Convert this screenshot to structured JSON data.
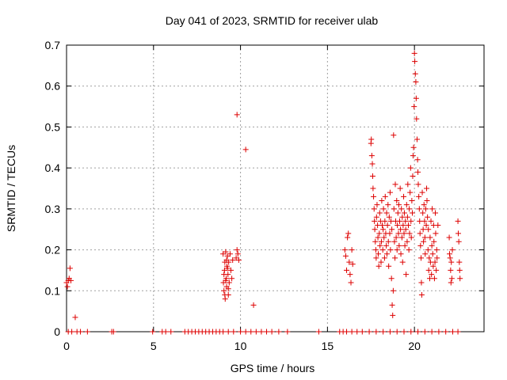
{
  "chart_data": {
    "type": "scatter",
    "title": "Day 041 of 2023, SRMTID for receiver ulab",
    "xlabel": "GPS time / hours",
    "ylabel": "SRMTID / TECUs",
    "xlim": [
      0,
      24
    ],
    "ylim": [
      0,
      0.7
    ],
    "xticks": [
      0,
      5,
      10,
      15,
      20
    ],
    "yticks": [
      0,
      0.1,
      0.2,
      0.3,
      0.4,
      0.5,
      0.6,
      0.7
    ],
    "xtick_labels": [
      "0",
      "5",
      "10",
      "15",
      "20"
    ],
    "ytick_labels": [
      "0",
      "0.1",
      "0.2",
      "0.3",
      "0.4",
      "0.5",
      "0.6",
      "0.7"
    ],
    "grid": true,
    "marker": "+",
    "color": "#dd0000",
    "series": [
      {
        "name": "SRMTID",
        "points": [
          [
            0.0,
            0.12
          ],
          [
            0.05,
            0.11
          ],
          [
            0.1,
            0.125
          ],
          [
            0.15,
            0.13
          ],
          [
            0.2,
            0.155
          ],
          [
            0.25,
            0.125
          ],
          [
            0.5,
            0.035
          ],
          [
            9.0,
            0.19
          ],
          [
            9.02,
            0.12
          ],
          [
            9.05,
            0.1
          ],
          [
            9.08,
            0.15
          ],
          [
            9.1,
            0.17
          ],
          [
            9.12,
            0.08
          ],
          [
            9.15,
            0.195
          ],
          [
            9.18,
            0.13
          ],
          [
            9.2,
            0.11
          ],
          [
            9.22,
            0.16
          ],
          [
            9.25,
            0.185
          ],
          [
            9.28,
            0.14
          ],
          [
            9.3,
            0.09
          ],
          [
            9.32,
            0.17
          ],
          [
            9.35,
            0.12
          ],
          [
            9.4,
            0.19
          ],
          [
            9.45,
            0.15
          ],
          [
            9.5,
            0.13
          ],
          [
            9.55,
            0.175
          ],
          [
            9.05,
            0.14
          ],
          [
            9.1,
            0.09
          ],
          [
            9.2,
            0.175
          ],
          [
            9.3,
            0.105
          ],
          [
            9.15,
            0.125
          ],
          [
            9.25,
            0.155
          ],
          [
            9.75,
            0.18
          ],
          [
            9.8,
            0.2
          ],
          [
            9.85,
            0.19
          ],
          [
            9.9,
            0.175
          ],
          [
            9.8,
            0.53
          ],
          [
            10.3,
            0.445
          ],
          [
            10.75,
            0.065
          ],
          [
            16.0,
            0.2
          ],
          [
            16.05,
            0.185
          ],
          [
            16.1,
            0.15
          ],
          [
            16.15,
            0.23
          ],
          [
            16.2,
            0.24
          ],
          [
            16.25,
            0.17
          ],
          [
            16.3,
            0.14
          ],
          [
            16.35,
            0.12
          ],
          [
            16.4,
            0.2
          ],
          [
            16.45,
            0.165
          ],
          [
            17.5,
            0.46
          ],
          [
            17.52,
            0.47
          ],
          [
            17.55,
            0.43
          ],
          [
            17.58,
            0.41
          ],
          [
            17.6,
            0.38
          ],
          [
            17.62,
            0.35
          ],
          [
            17.65,
            0.33
          ],
          [
            17.68,
            0.3
          ],
          [
            17.7,
            0.27
          ],
          [
            17.72,
            0.25
          ],
          [
            17.75,
            0.22
          ],
          [
            17.78,
            0.2
          ],
          [
            17.8,
            0.18
          ],
          [
            17.82,
            0.28
          ],
          [
            17.85,
            0.31
          ],
          [
            17.88,
            0.26
          ],
          [
            17.9,
            0.23
          ],
          [
            17.92,
            0.19
          ],
          [
            17.95,
            0.16
          ],
          [
            17.98,
            0.24
          ],
          [
            18.0,
            0.29
          ],
          [
            18.02,
            0.21
          ],
          [
            18.05,
            0.27
          ],
          [
            18.08,
            0.17
          ],
          [
            18.1,
            0.22
          ],
          [
            18.12,
            0.32
          ],
          [
            18.15,
            0.26
          ],
          [
            18.18,
            0.2
          ],
          [
            18.2,
            0.25
          ],
          [
            18.22,
            0.3
          ],
          [
            18.25,
            0.23
          ],
          [
            18.28,
            0.18
          ],
          [
            18.3,
            0.27
          ],
          [
            18.32,
            0.33
          ],
          [
            18.35,
            0.24
          ],
          [
            18.38,
            0.21
          ],
          [
            18.4,
            0.29
          ],
          [
            18.42,
            0.19
          ],
          [
            18.45,
            0.26
          ],
          [
            18.48,
            0.31
          ],
          [
            18.5,
            0.22
          ],
          [
            18.52,
            0.16
          ],
          [
            18.55,
            0.28
          ],
          [
            18.58,
            0.24
          ],
          [
            18.6,
            0.34
          ],
          [
            18.62,
            0.2
          ],
          [
            18.65,
            0.27
          ],
          [
            18.68,
            0.13
          ],
          [
            18.7,
            0.25
          ],
          [
            18.72,
            0.065
          ],
          [
            18.75,
            0.04
          ],
          [
            18.78,
            0.1
          ],
          [
            18.8,
            0.48
          ],
          [
            18.82,
            0.3
          ],
          [
            18.85,
            0.22
          ],
          [
            18.88,
            0.18
          ],
          [
            18.9,
            0.36
          ],
          [
            18.92,
            0.27
          ],
          [
            18.95,
            0.23
          ],
          [
            18.98,
            0.32
          ],
          [
            19.0,
            0.2
          ],
          [
            19.02,
            0.26
          ],
          [
            19.05,
            0.29
          ],
          [
            19.08,
            0.24
          ],
          [
            19.1,
            0.31
          ],
          [
            19.12,
            0.21
          ],
          [
            19.15,
            0.27
          ],
          [
            19.18,
            0.35
          ],
          [
            19.2,
            0.25
          ],
          [
            19.22,
            0.19
          ],
          [
            19.25,
            0.3
          ],
          [
            19.28,
            0.23
          ],
          [
            19.3,
            0.28
          ],
          [
            19.32,
            0.17
          ],
          [
            19.35,
            0.26
          ],
          [
            19.38,
            0.33
          ],
          [
            19.4,
            0.24
          ],
          [
            19.42,
            0.29
          ],
          [
            19.45,
            0.21
          ],
          [
            19.48,
            0.27
          ],
          [
            19.5,
            0.25
          ],
          [
            19.52,
            0.14
          ],
          [
            19.55,
            0.31
          ],
          [
            19.58,
            0.22
          ],
          [
            19.6,
            0.28
          ],
          [
            19.62,
            0.36
          ],
          [
            19.65,
            0.26
          ],
          [
            19.68,
            0.2
          ],
          [
            19.7,
            0.3
          ],
          [
            19.72,
            0.24
          ],
          [
            19.75,
            0.34
          ],
          [
            19.78,
            0.4
          ],
          [
            19.8,
            0.27
          ],
          [
            19.82,
            0.23
          ],
          [
            19.85,
            0.32
          ],
          [
            19.88,
            0.29
          ],
          [
            19.9,
            0.38
          ],
          [
            19.92,
            0.43
          ],
          [
            19.95,
            0.45
          ],
          [
            19.98,
            0.55
          ],
          [
            20.0,
            0.68
          ],
          [
            20.02,
            0.66
          ],
          [
            20.05,
            0.63
          ],
          [
            20.08,
            0.61
          ],
          [
            20.1,
            0.57
          ],
          [
            20.12,
            0.52
          ],
          [
            20.15,
            0.47
          ],
          [
            20.18,
            0.42
          ],
          [
            20.2,
            0.39
          ],
          [
            20.22,
            0.36
          ],
          [
            20.25,
            0.33
          ],
          [
            20.28,
            0.3
          ],
          [
            20.3,
            0.27
          ],
          [
            20.32,
            0.24
          ],
          [
            20.35,
            0.21
          ],
          [
            20.38,
            0.18
          ],
          [
            20.4,
            0.12
          ],
          [
            20.42,
            0.09
          ],
          [
            20.45,
            0.34
          ],
          [
            20.48,
            0.29
          ],
          [
            20.5,
            0.25
          ],
          [
            20.52,
            0.22
          ],
          [
            20.55,
            0.31
          ],
          [
            20.58,
            0.27
          ],
          [
            20.6,
            0.23
          ],
          [
            20.62,
            0.19
          ],
          [
            20.65,
            0.3
          ],
          [
            20.68,
            0.26
          ],
          [
            20.7,
            0.35
          ],
          [
            20.72,
            0.32
          ],
          [
            20.75,
            0.28
          ],
          [
            20.78,
            0.2
          ],
          [
            20.8,
            0.25
          ],
          [
            20.82,
            0.15
          ],
          [
            20.85,
            0.18
          ],
          [
            20.88,
            0.13
          ],
          [
            20.9,
            0.23
          ],
          [
            20.92,
            0.17
          ],
          [
            20.95,
            0.27
          ],
          [
            20.98,
            0.14
          ],
          [
            21.0,
            0.21
          ],
          [
            21.02,
            0.3
          ],
          [
            21.05,
            0.19
          ],
          [
            21.08,
            0.16
          ],
          [
            21.1,
            0.26
          ],
          [
            21.12,
            0.22
          ],
          [
            21.15,
            0.13
          ],
          [
            21.18,
            0.17
          ],
          [
            21.2,
            0.29
          ],
          [
            21.22,
            0.24
          ],
          [
            21.25,
            0.15
          ],
          [
            21.28,
            0.2
          ],
          [
            21.3,
            0.18
          ],
          [
            21.35,
            0.26
          ],
          [
            22.0,
            0.23
          ],
          [
            22.02,
            0.19
          ],
          [
            22.05,
            0.18
          ],
          [
            22.08,
            0.15
          ],
          [
            22.1,
            0.12
          ],
          [
            22.12,
            0.17
          ],
          [
            22.15,
            0.13
          ],
          [
            22.18,
            0.2
          ],
          [
            22.5,
            0.27
          ],
          [
            22.52,
            0.24
          ],
          [
            22.55,
            0.22
          ],
          [
            22.58,
            0.17
          ],
          [
            22.6,
            0.15
          ],
          [
            22.62,
            0.13
          ],
          [
            0.1,
            0.0
          ],
          [
            0.3,
            0.0
          ],
          [
            0.6,
            0.0
          ],
          [
            0.8,
            0.0
          ],
          [
            1.2,
            0.0
          ],
          [
            2.6,
            0.0
          ],
          [
            2.7,
            0.0
          ],
          [
            4.95,
            0.0
          ],
          [
            5.5,
            0.0
          ],
          [
            5.7,
            0.0
          ],
          [
            6.0,
            0.0
          ],
          [
            6.8,
            0.0
          ],
          [
            7.0,
            0.0
          ],
          [
            7.2,
            0.0
          ],
          [
            7.4,
            0.0
          ],
          [
            7.6,
            0.0
          ],
          [
            7.8,
            0.0
          ],
          [
            8.0,
            0.0
          ],
          [
            8.2,
            0.0
          ],
          [
            8.4,
            0.0
          ],
          [
            8.6,
            0.0
          ],
          [
            8.8,
            0.0
          ],
          [
            9.0,
            0.0
          ],
          [
            9.3,
            0.0
          ],
          [
            9.6,
            0.0
          ],
          [
            10.0,
            0.0
          ],
          [
            10.3,
            0.0
          ],
          [
            10.6,
            0.0
          ],
          [
            10.9,
            0.0
          ],
          [
            11.2,
            0.0
          ],
          [
            11.5,
            0.0
          ],
          [
            11.8,
            0.0
          ],
          [
            12.2,
            0.0
          ],
          [
            12.7,
            0.0
          ],
          [
            14.5,
            0.0
          ],
          [
            15.7,
            0.0
          ],
          [
            15.9,
            0.0
          ],
          [
            16.1,
            0.0
          ],
          [
            16.4,
            0.0
          ],
          [
            16.7,
            0.0
          ],
          [
            17.0,
            0.0
          ],
          [
            17.4,
            0.0
          ],
          [
            17.8,
            0.0
          ],
          [
            18.2,
            0.0
          ],
          [
            18.6,
            0.0
          ],
          [
            19.0,
            0.0
          ],
          [
            19.4,
            0.0
          ],
          [
            19.8,
            0.0
          ],
          [
            20.2,
            0.0
          ],
          [
            20.6,
            0.0
          ],
          [
            21.0,
            0.0
          ],
          [
            21.4,
            0.0
          ],
          [
            21.8,
            0.0
          ],
          [
            22.2,
            0.0
          ],
          [
            22.5,
            0.0
          ]
        ]
      }
    ]
  }
}
